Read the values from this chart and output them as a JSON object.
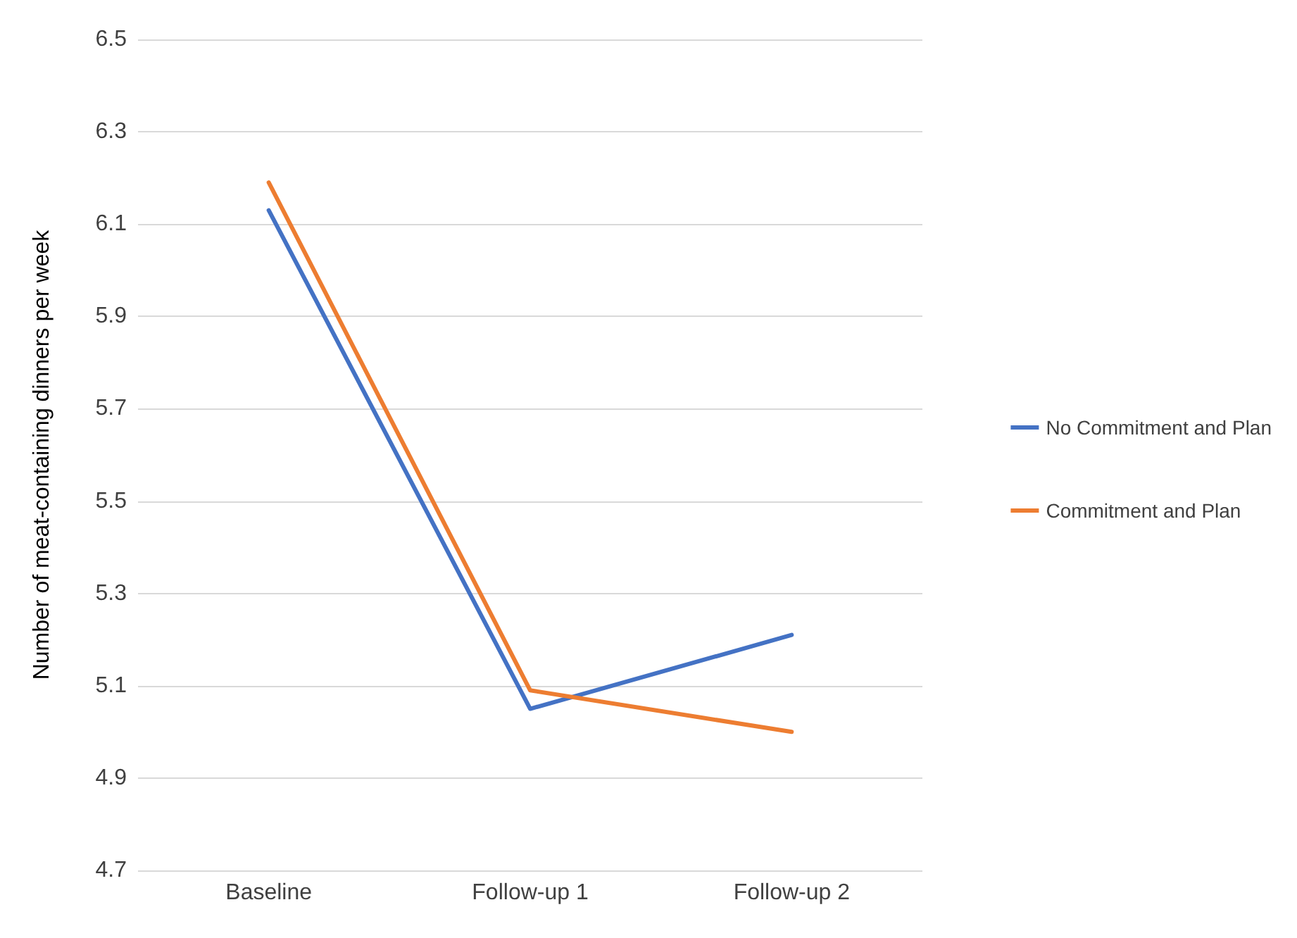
{
  "chart_data": {
    "type": "line",
    "categories": [
      "Baseline",
      "Follow-up 1",
      "Follow-up 2"
    ],
    "ylabel": "Number of meat-containing dinners per week",
    "ylim": [
      4.7,
      6.5
    ],
    "yticks": [
      4.7,
      4.9,
      5.1,
      5.3,
      5.5,
      5.7,
      5.9,
      6.1,
      6.3,
      6.5
    ],
    "grid": "y",
    "legend": "right",
    "marker": "none",
    "line_style": "solid",
    "series": [
      {
        "name": "No Commitment and Plan",
        "color": "#4472c4",
        "values": [
          6.13,
          5.05,
          5.21
        ]
      },
      {
        "name": "Commitment and Plan",
        "color": "#ed7d31",
        "values": [
          6.19,
          5.09,
          5.0
        ]
      }
    ]
  }
}
